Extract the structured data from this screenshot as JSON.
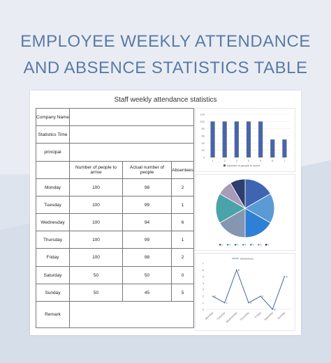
{
  "page": {
    "title_line1": "EMPLOYEE WEEKLY ATTENDANCE",
    "title_line2": "AND ABSENCE STATISTICS TABLE"
  },
  "sheet": {
    "title": "Staff weekly attendance statistics",
    "info_rows": [
      {
        "label": "Company Name",
        "value": ""
      },
      {
        "label": "Statistics Time",
        "value": ""
      },
      {
        "label": "principal",
        "value": ""
      }
    ],
    "headers": [
      "",
      "Number of people to arrive",
      "Actual number of people",
      "Absentees"
    ],
    "rows": [
      {
        "day": "Monday",
        "arrive": "100",
        "actual": "98",
        "absent": "2"
      },
      {
        "day": "Tuesday",
        "arrive": "100",
        "actual": "99",
        "absent": "1"
      },
      {
        "day": "Wednesday",
        "arrive": "100",
        "actual": "94",
        "absent": "6"
      },
      {
        "day": "Thursday",
        "arrive": "100",
        "actual": "99",
        "absent": "1"
      },
      {
        "day": "Friday",
        "arrive": "100",
        "actual": "98",
        "absent": "2"
      },
      {
        "day": "Saturday",
        "arrive": "50",
        "actual": "50",
        "absent": "0"
      },
      {
        "day": "Sunday",
        "arrive": "50",
        "actual": "45",
        "absent": "5"
      }
    ],
    "remark_label": "Remark",
    "remark_value": ""
  },
  "chart_data": [
    {
      "type": "bar",
      "categories": [
        "1",
        "2",
        "3",
        "4",
        "5",
        "6",
        "7"
      ],
      "series": [
        {
          "name": "Number of people to arrive",
          "values": [
            100,
            100,
            100,
            100,
            100,
            50,
            50
          ]
        }
      ],
      "ylim": [
        0,
        120
      ],
      "yticks": [
        0,
        20,
        40,
        60,
        80,
        100,
        120
      ],
      "legend": "bottom",
      "color": "#4a64a8"
    },
    {
      "type": "pie",
      "categories": [
        "1",
        "2",
        "3",
        "4",
        "5",
        "6",
        "7"
      ],
      "values": [
        100,
        100,
        100,
        100,
        100,
        50,
        50
      ],
      "colors": [
        "#3f65b2",
        "#5b9bd5",
        "#2e7fd6",
        "#8496b0",
        "#4aa3a8",
        "#a99bb9",
        "#2c3f6e"
      ],
      "legend": "bottom"
    },
    {
      "type": "line",
      "categories": [
        "Monday",
        "Tuesday",
        "Wednesday",
        "Thursday",
        "Friday",
        "Saturday",
        "Sunday"
      ],
      "series": [
        {
          "name": "Absentees",
          "values": [
            2,
            1,
            6,
            1,
            2,
            0,
            5
          ]
        }
      ],
      "data_labels": [
        "2",
        "1",
        "6",
        "1",
        "2",
        "0",
        "5"
      ],
      "ylim": [
        0,
        7
      ],
      "yticks": [
        0,
        1,
        2,
        3,
        4,
        5,
        6,
        7
      ],
      "legend": "top",
      "color": "#4a64a8"
    }
  ]
}
